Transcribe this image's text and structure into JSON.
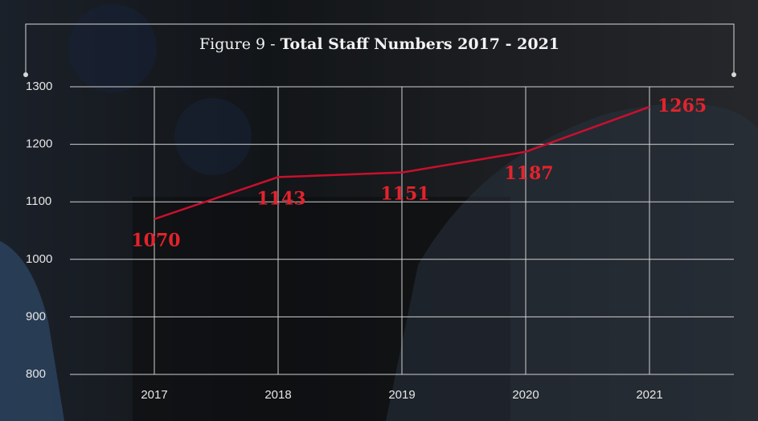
{
  "chart_data": {
    "type": "line",
    "figure_label": "Figure 9 -",
    "title": "Total Staff Numbers 2017 - 2021",
    "categories": [
      "2017",
      "2018",
      "2019",
      "2020",
      "2021"
    ],
    "values": [
      1070,
      1143,
      1151,
      1187,
      1265
    ],
    "color": "#c8102e",
    "ylim": [
      800,
      1300
    ],
    "yticks": [
      800,
      900,
      1000,
      1100,
      1200,
      1300
    ],
    "grid": true
  }
}
